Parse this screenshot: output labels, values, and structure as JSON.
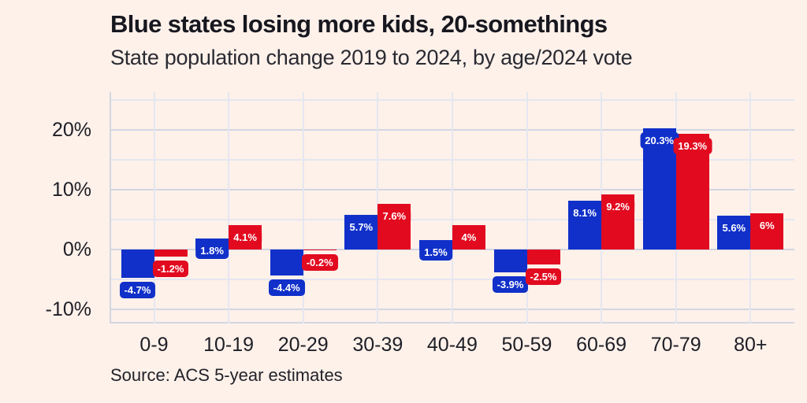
{
  "header": {
    "title": "Blue states losing more kids, 20-somethings",
    "subtitle": "State population change 2019 to 2024, by age/2024 vote"
  },
  "source": "Source: ACS 5-year estimates",
  "colors": {
    "background": "#fdf1ea",
    "blue": "#1130c9",
    "red": "#e20a1f",
    "grid_major": "#d3d6e2",
    "grid_minor": "#e5e7f0",
    "title_text": "#17171f",
    "axis_text": "#1e1e26",
    "label_text": "#ffffff"
  },
  "chart_data": {
    "type": "bar",
    "title": "Blue states losing more kids, 20-somethings",
    "subtitle": "State population change 2019 to 2024, by age/2024 vote",
    "xlabel": "",
    "ylabel": "",
    "categories": [
      "0-9",
      "10-19",
      "20-29",
      "30-39",
      "40-49",
      "50-59",
      "60-69",
      "70-79",
      "80+"
    ],
    "series": [
      {
        "name": "blue_states",
        "color_key": "blue",
        "values": [
          -4.7,
          1.8,
          -4.4,
          5.7,
          1.5,
          -3.9,
          8.1,
          20.3,
          5.6
        ],
        "labels": [
          "-4.7%",
          "1.8%",
          "-4.4%",
          "5.7%",
          "1.5%",
          "-3.9%",
          "8.1%",
          "20.3%",
          "5.6%"
        ]
      },
      {
        "name": "red_states",
        "color_key": "red",
        "values": [
          -1.2,
          4.1,
          -0.2,
          7.6,
          4,
          -2.5,
          9.2,
          19.3,
          6
        ],
        "labels": [
          "-1.2%",
          "4.1%",
          "-0.2%",
          "7.6%",
          "4%",
          "-2.5%",
          "9.2%",
          "19.3%",
          "6%"
        ]
      }
    ],
    "yticks": [
      {
        "value": 20,
        "label": "20%"
      },
      {
        "value": 10,
        "label": "10%"
      },
      {
        "value": 0,
        "label": "0%"
      },
      {
        "value": -10,
        "label": "-10%"
      }
    ],
    "grid_minor_step": 5,
    "grid_minor_max": 25,
    "grid_minor_min": -10,
    "ylim": [
      -12.4,
      26.3
    ],
    "grid": true,
    "legend_position": "none"
  }
}
